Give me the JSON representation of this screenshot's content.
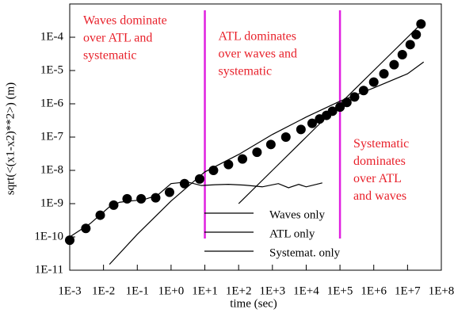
{
  "chart_data": {
    "type": "scatter",
    "xlabel": "time (sec)",
    "ylabel": "sqrt(<(x1-x2)**2>) (m)",
    "xscale": "log",
    "yscale": "log",
    "xlim": [
      0.001,
      100000000
    ],
    "ylim": [
      1e-11,
      0.001
    ],
    "xticks": [
      {
        "value": 0.001,
        "label": "1E-3"
      },
      {
        "value": 0.01,
        "label": "1E-2"
      },
      {
        "value": 0.1,
        "label": "1E-1"
      },
      {
        "value": 1,
        "label": "1E+0"
      },
      {
        "value": 10,
        "label": "1E+1"
      },
      {
        "value": 100,
        "label": "1E+2"
      },
      {
        "value": 1000,
        "label": "1E+3"
      },
      {
        "value": 10000,
        "label": "1E+4"
      },
      {
        "value": 100000,
        "label": "1E+5"
      },
      {
        "value": 1000000,
        "label": "1E+6"
      },
      {
        "value": 10000000,
        "label": "1E+7"
      },
      {
        "value": 100000000,
        "label": "1E+8"
      }
    ],
    "yticks": [
      {
        "value": 1e-11,
        "label": "1E-11"
      },
      {
        "value": 1e-10,
        "label": "1E-10"
      },
      {
        "value": 1e-09,
        "label": "1E-9"
      },
      {
        "value": 1e-08,
        "label": "1E-8"
      },
      {
        "value": 1e-07,
        "label": "1E-7"
      },
      {
        "value": 1e-06,
        "label": "1E-6"
      },
      {
        "value": 1e-05,
        "label": "1E-5"
      },
      {
        "value": 0.0001,
        "label": "1E-4"
      }
    ],
    "legend": "lower center",
    "series": [
      {
        "color": "#000000",
        "style": "markers",
        "x": [
          0.001,
          0.003,
          0.008,
          0.02,
          0.05,
          0.13,
          0.35,
          0.9,
          2.5,
          7,
          18,
          50,
          130,
          350,
          900,
          2500,
          7000,
          15000,
          25000,
          40000,
          60000,
          100000,
          160000,
          270000,
          500000,
          1000000,
          2000000,
          4000000,
          7000000,
          12000000,
          18000000,
          25000000
        ],
        "values": [
          8e-11,
          1.8e-10,
          4.5e-10,
          9e-10,
          1.4e-09,
          1.4e-09,
          1.5e-09,
          2.2e-09,
          4e-09,
          5.5e-09,
          1e-08,
          1.5e-08,
          2.2e-08,
          3.5e-08,
          6e-08,
          1e-07,
          1.7e-07,
          2.6e-07,
          3.5e-07,
          4.5e-07,
          6e-07,
          8e-07,
          1.1e-06,
          1.6e-06,
          2.5e-06,
          4.5e-06,
          8e-06,
          1.5e-05,
          3e-05,
          6e-05,
          0.00012,
          0.00025
        ]
      },
      {
        "name": "Waves only",
        "color": "#000000",
        "style": "line",
        "x": [
          0.001,
          0.004,
          0.015,
          0.03,
          0.06,
          0.15,
          0.4,
          1,
          3,
          8,
          20,
          50,
          150,
          500,
          1500,
          3000,
          6000,
          10000,
          30000
        ],
        "values": [
          1e-10,
          2.5e-10,
          8e-10,
          1.1e-09,
          1.2e-09,
          1.3e-09,
          1.8e-09,
          4e-09,
          4.5e-09,
          3.5e-09,
          3.7e-09,
          3.8e-09,
          3.6e-09,
          3.2e-09,
          4e-09,
          3e-09,
          3.8e-09,
          3.2e-09,
          4.2e-09
        ]
      },
      {
        "name": "ATL only",
        "color": "#000000",
        "style": "line",
        "x": [
          0.015,
          0.1,
          1,
          10,
          100,
          1000,
          10000,
          100000,
          1000000,
          10000000,
          30000000
        ],
        "values": [
          1.5e-11,
          1.2e-10,
          1.2e-09,
          9e-09,
          3e-08,
          1.2e-07,
          4e-07,
          1.2e-06,
          3e-06,
          8e-06,
          1.8e-05
        ]
      },
      {
        "name": "Systemat. only",
        "color": "#000000",
        "style": "line",
        "x": [
          100,
          1000,
          10000,
          100000,
          300000,
          1000000,
          10000000,
          25000000
        ],
        "values": [
          1e-09,
          1e-08,
          1e-07,
          1e-06,
          3e-06,
          1e-05,
          0.0001,
          0.00025
        ]
      }
    ],
    "vlines": [
      10,
      100000
    ],
    "vline_color": "#e020e0",
    "annotation_color": "#e8202a",
    "annotations": [
      {
        "x": 0.0025,
        "y": 0.0003,
        "lines": [
          "Waves dominate",
          "over ATL and",
          "systematic"
        ]
      },
      {
        "x": 25,
        "y": 0.0001,
        "lines": [
          "ATL dominates",
          "over waves and",
          "systematic"
        ]
      },
      {
        "x": 250000,
        "y": 6e-08,
        "lines": [
          "Systematic",
          "dominates",
          "over ATL",
          "and waves"
        ]
      }
    ]
  }
}
